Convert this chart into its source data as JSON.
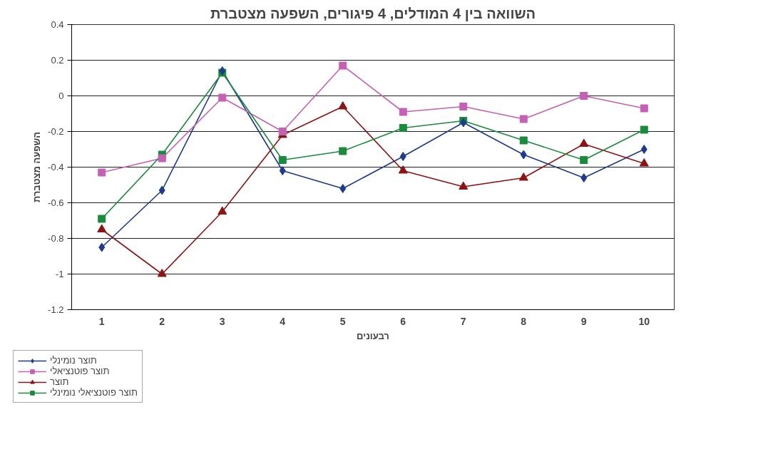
{
  "chart_data": {
    "type": "line",
    "title": "השוואה בין 4 המודלים, 4 פיגורים, השפעה מצטברת",
    "xlabel": "רבעונים",
    "ylabel": "השפעה מצטברת",
    "categories": [
      "1",
      "2",
      "3",
      "4",
      "5",
      "6",
      "7",
      "8",
      "9",
      "10"
    ],
    "series": [
      {
        "name": "תוצר נומינלי",
        "color": "#1f3a8c",
        "marker": "diamond",
        "values": [
          -0.85,
          -0.53,
          0.14,
          -0.42,
          -0.52,
          -0.34,
          -0.15,
          -0.33,
          -0.46,
          -0.3
        ]
      },
      {
        "name": "תוצר פוטנציאלי",
        "color": "#c660b4",
        "marker": "square",
        "values": [
          -0.43,
          -0.35,
          -0.01,
          -0.2,
          0.17,
          -0.09,
          -0.06,
          -0.13,
          0.0,
          -0.07
        ]
      },
      {
        "name": "תוצר",
        "color": "#8b1414",
        "marker": "triangle",
        "values": [
          -0.75,
          -1.0,
          -0.65,
          -0.22,
          -0.06,
          -0.42,
          -0.51,
          -0.46,
          -0.27,
          -0.38
        ]
      },
      {
        "name": "תוצר פוטנציאלי נומינלי",
        "color": "#1a8a3c",
        "marker": "square",
        "values": [
          -0.69,
          -0.33,
          0.13,
          -0.36,
          -0.31,
          -0.18,
          -0.14,
          -0.25,
          -0.36,
          -0.19
        ]
      }
    ],
    "ylim": [
      -1.2,
      0.4
    ],
    "yticks": [
      -1.2,
      -1,
      -0.8,
      -0.6,
      -0.4,
      -0.2,
      0,
      0.2,
      0.4
    ],
    "grid": "y",
    "legend": "bottom left",
    "line_style": "solid"
  }
}
